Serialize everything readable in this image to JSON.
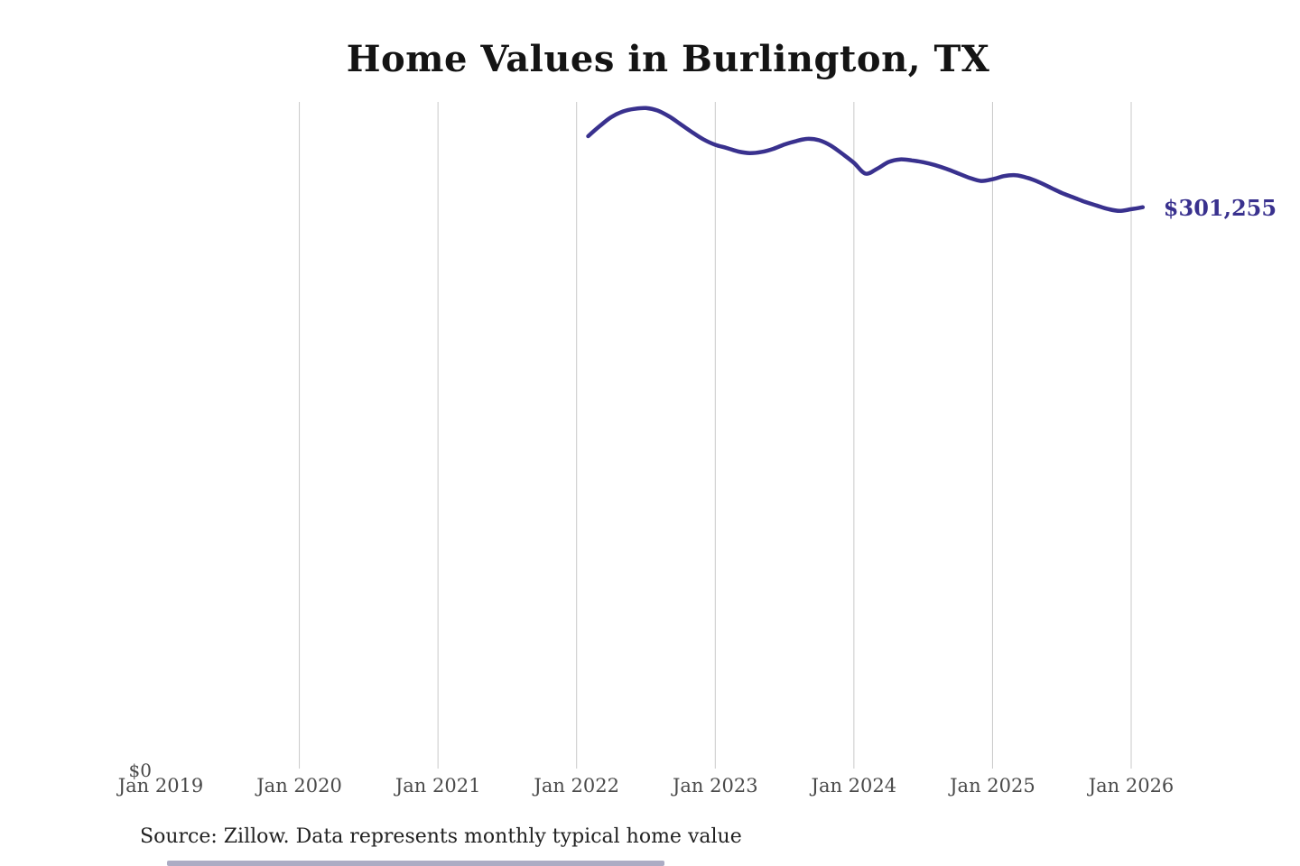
{
  "page": {
    "title": "Home Values in Burlington, TX",
    "source_note": "Source: Zillow. Data represents monthly typical home value"
  },
  "chart_data": {
    "type": "line",
    "title": "Home Values in Burlington, TX",
    "xlabel": "",
    "ylabel": "",
    "legend": "none",
    "grid": "vertical-only",
    "gridline_color": "#c9c9c9",
    "axis_label_color": "#4a4a4a",
    "y_axis": {
      "min": 0,
      "min_label": "$0",
      "max_implied": 357500
    },
    "x_ticks": [
      {
        "label": "Jan 2019",
        "gridline": false
      },
      {
        "label": "Jan 2020",
        "gridline": true
      },
      {
        "label": "Jan 2021",
        "gridline": true
      },
      {
        "label": "Jan 2022",
        "gridline": true
      },
      {
        "label": "Jan 2023",
        "gridline": true
      },
      {
        "label": "Jan 2024",
        "gridline": true
      },
      {
        "label": "Jan 2025",
        "gridline": true
      },
      {
        "label": "Jan 2026",
        "gridline": true
      }
    ],
    "end_label": "$301,255",
    "series": [
      {
        "name": "Monthly typical home value",
        "color": "#39318e",
        "points": [
          {
            "x": "Jan 2022",
            "y": 339200
          },
          {
            "x": "Feb 2022",
            "y": 344600
          },
          {
            "x": "Mar 2022",
            "y": 349400
          },
          {
            "x": "Apr 2022",
            "y": 352400
          },
          {
            "x": "May 2022",
            "y": 353800
          },
          {
            "x": "Jun 2022",
            "y": 354200
          },
          {
            "x": "Jul 2022",
            "y": 352900
          },
          {
            "x": "Aug 2022",
            "y": 349800
          },
          {
            "x": "Sep 2022",
            "y": 345600
          },
          {
            "x": "Oct 2022",
            "y": 341300
          },
          {
            "x": "Nov 2022",
            "y": 337400
          },
          {
            "x": "Dec 2022",
            "y": 334600
          },
          {
            "x": "Jan 2023",
            "y": 332900
          },
          {
            "x": "Feb 2023",
            "y": 331000
          },
          {
            "x": "Mar 2023",
            "y": 330200
          },
          {
            "x": "Apr 2023",
            "y": 330800
          },
          {
            "x": "May 2023",
            "y": 332400
          },
          {
            "x": "Jun 2023",
            "y": 334800
          },
          {
            "x": "Jul 2023",
            "y": 336600
          },
          {
            "x": "Aug 2023",
            "y": 337800
          },
          {
            "x": "Sep 2023",
            "y": 337000
          },
          {
            "x": "Oct 2023",
            "y": 334200
          },
          {
            "x": "Nov 2023",
            "y": 329800
          },
          {
            "x": "Dec 2023",
            "y": 325000
          },
          {
            "x": "Jan 2024",
            "y": 319200
          },
          {
            "x": "Feb 2024",
            "y": 321800
          },
          {
            "x": "Mar 2024",
            "y": 325400
          },
          {
            "x": "Apr 2024",
            "y": 326800
          },
          {
            "x": "May 2024",
            "y": 326300
          },
          {
            "x": "Jun 2024",
            "y": 325300
          },
          {
            "x": "Jul 2024",
            "y": 323800
          },
          {
            "x": "Aug 2024",
            "y": 321800
          },
          {
            "x": "Sep 2024",
            "y": 319400
          },
          {
            "x": "Oct 2024",
            "y": 317000
          },
          {
            "x": "Nov 2024",
            "y": 315300
          },
          {
            "x": "Dec 2024",
            "y": 316200
          },
          {
            "x": "Jan 2025",
            "y": 317900
          },
          {
            "x": "Feb 2025",
            "y": 318400
          },
          {
            "x": "Mar 2025",
            "y": 317000
          },
          {
            "x": "Apr 2025",
            "y": 314700
          },
          {
            "x": "May 2025",
            "y": 311800
          },
          {
            "x": "Jun 2025",
            "y": 308900
          },
          {
            "x": "Jul 2025",
            "y": 306500
          },
          {
            "x": "Aug 2025",
            "y": 304100
          },
          {
            "x": "Sep 2025",
            "y": 302200
          },
          {
            "x": "Oct 2025",
            "y": 300300
          },
          {
            "x": "Nov 2025",
            "y": 299300
          },
          {
            "x": "Dec 2025",
            "y": 300200
          },
          {
            "x": "Jan 2026",
            "y": 301255
          }
        ]
      }
    ]
  }
}
